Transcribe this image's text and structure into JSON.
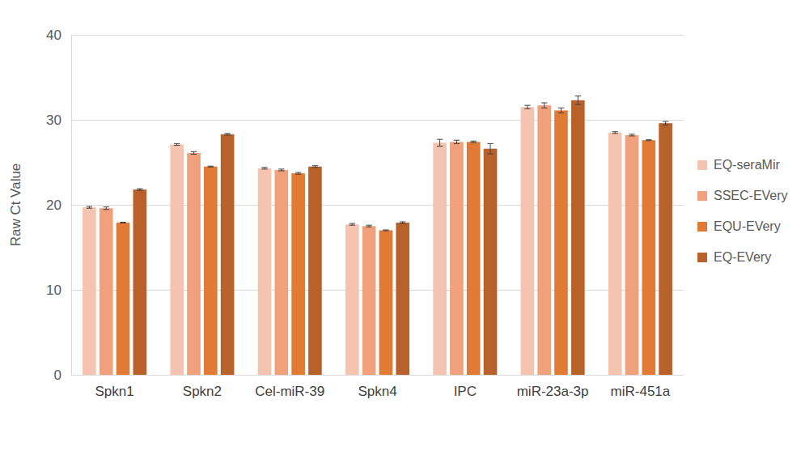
{
  "chart_data": {
    "type": "bar",
    "y_label": "Raw Ct Value",
    "categories": [
      "Spkn1",
      "Spkn2",
      "Cel-miR-39",
      "Spkn4",
      "IPC",
      "miR-23a-3p",
      "miR-451a"
    ],
    "series": [
      {
        "name": "EQ-seraMir",
        "color": "#f5c4b0",
        "values": [
          19.7,
          27.1,
          24.3,
          17.7,
          27.3,
          31.5,
          28.5
        ],
        "errors": [
          0.1,
          0.1,
          0.1,
          0.1,
          0.4,
          0.2,
          0.1
        ]
      },
      {
        "name": "SSEC-EVery",
        "color": "#f0a07a",
        "values": [
          19.6,
          26.1,
          24.1,
          17.5,
          27.4,
          31.7,
          28.2
        ],
        "errors": [
          0.15,
          0.15,
          0.1,
          0.1,
          0.2,
          0.3,
          0.1
        ]
      },
      {
        "name": "EQU-EVery",
        "color": "#e07a35",
        "values": [
          17.9,
          24.5,
          23.7,
          17.0,
          27.4,
          31.1,
          27.6
        ],
        "errors": [
          0.05,
          0.05,
          0.1,
          0.05,
          0.1,
          0.3,
          0.05
        ]
      },
      {
        "name": "EQ-EVery",
        "color": "#b8612a",
        "values": [
          21.8,
          28.3,
          24.5,
          17.9,
          26.6,
          32.3,
          29.6
        ],
        "errors": [
          0.1,
          0.1,
          0.1,
          0.1,
          0.6,
          0.5,
          0.2
        ]
      }
    ],
    "ylim": [
      0,
      40
    ],
    "yticks": [
      0,
      10,
      20,
      30,
      40
    ],
    "grid": true,
    "legend": "right"
  }
}
